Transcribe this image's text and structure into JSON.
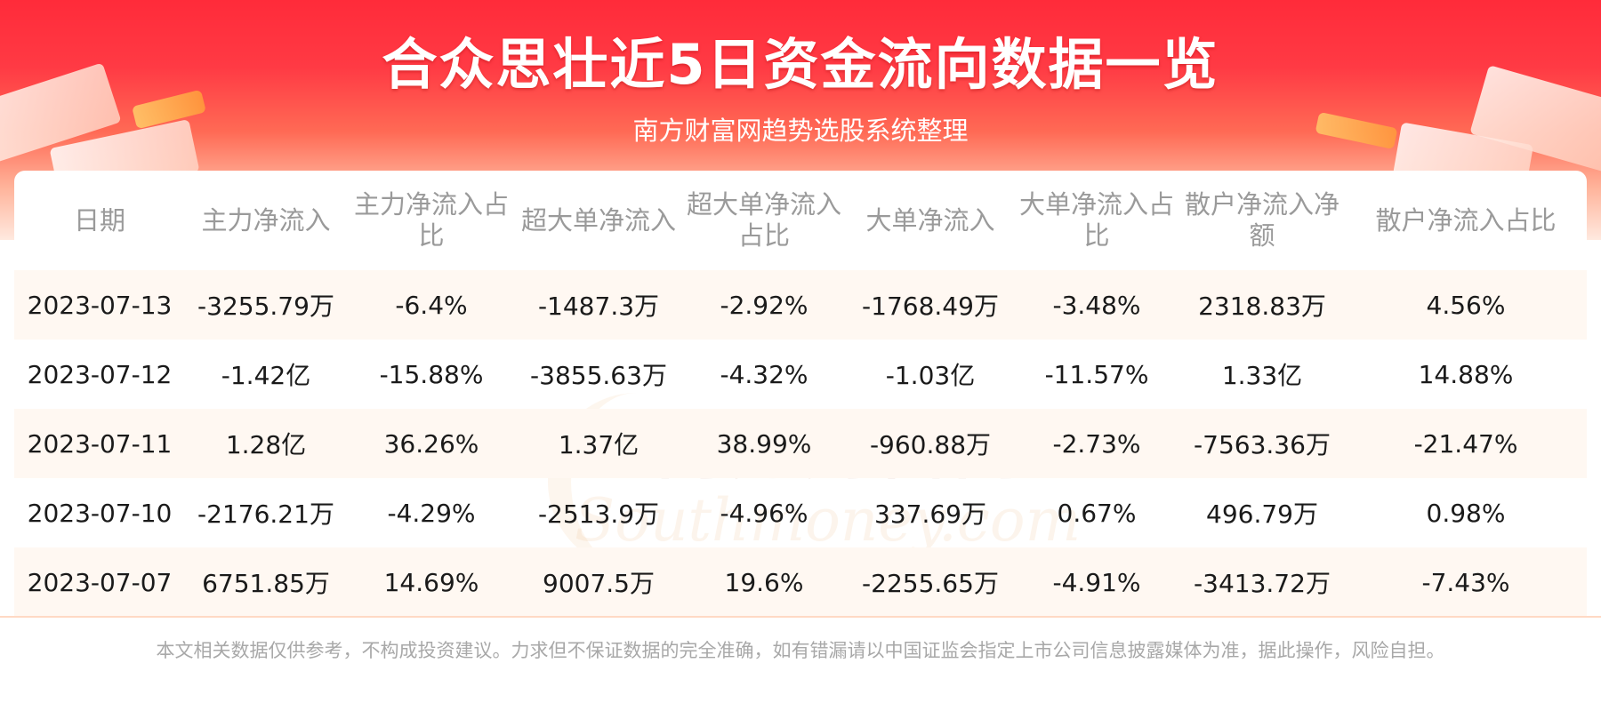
{
  "header": {
    "title": "合众思壮近5日资金流向数据一览",
    "subtitle": "南方财富网趋势选股系统整理"
  },
  "watermark": {
    "cn": "南方财富网",
    "en": "Southmoney.com"
  },
  "table": {
    "columns": [
      "日期",
      "主力净流入",
      "主力净流入占比",
      "超大单净流入",
      "超大单净流入占比",
      "大单净流入",
      "大单净流入占比",
      "散户净流入净额",
      "散户净流入占比"
    ],
    "rows": [
      [
        "2023-07-13",
        "-3255.79万",
        "-6.4%",
        "-1487.3万",
        "-2.92%",
        "-1768.49万",
        "-3.48%",
        "2318.83万",
        "4.56%"
      ],
      [
        "2023-07-12",
        "-1.42亿",
        "-15.88%",
        "-3855.63万",
        "-4.32%",
        "-1.03亿",
        "-11.57%",
        "1.33亿",
        "14.88%"
      ],
      [
        "2023-07-11",
        "1.28亿",
        "36.26%",
        "1.37亿",
        "38.99%",
        "-960.88万",
        "-2.73%",
        "-7563.36万",
        "-21.47%"
      ],
      [
        "2023-07-10",
        "-2176.21万",
        "-4.29%",
        "-2513.9万",
        "-4.96%",
        "337.69万",
        "0.67%",
        "496.79万",
        "0.98%"
      ],
      [
        "2023-07-07",
        "6751.85万",
        "14.69%",
        "9007.5万",
        "19.6%",
        "-2255.65万",
        "-4.91%",
        "-3413.72万",
        "-7.43%"
      ]
    ]
  },
  "footer": {
    "disclaimer": "本文相关数据仅供参考，不构成投资建议。力求但不保证数据的完全准确，如有错漏请以中国证监会指定上市公司信息披露媒体为准，据此操作，风险自担。"
  },
  "colors": {
    "banner_red": "#ff2b3a",
    "header_text": "#9a9a9a",
    "row_stripe": "#fff8f2",
    "body_text": "#1a1a1a",
    "disclaimer": "#a8a8a8"
  }
}
